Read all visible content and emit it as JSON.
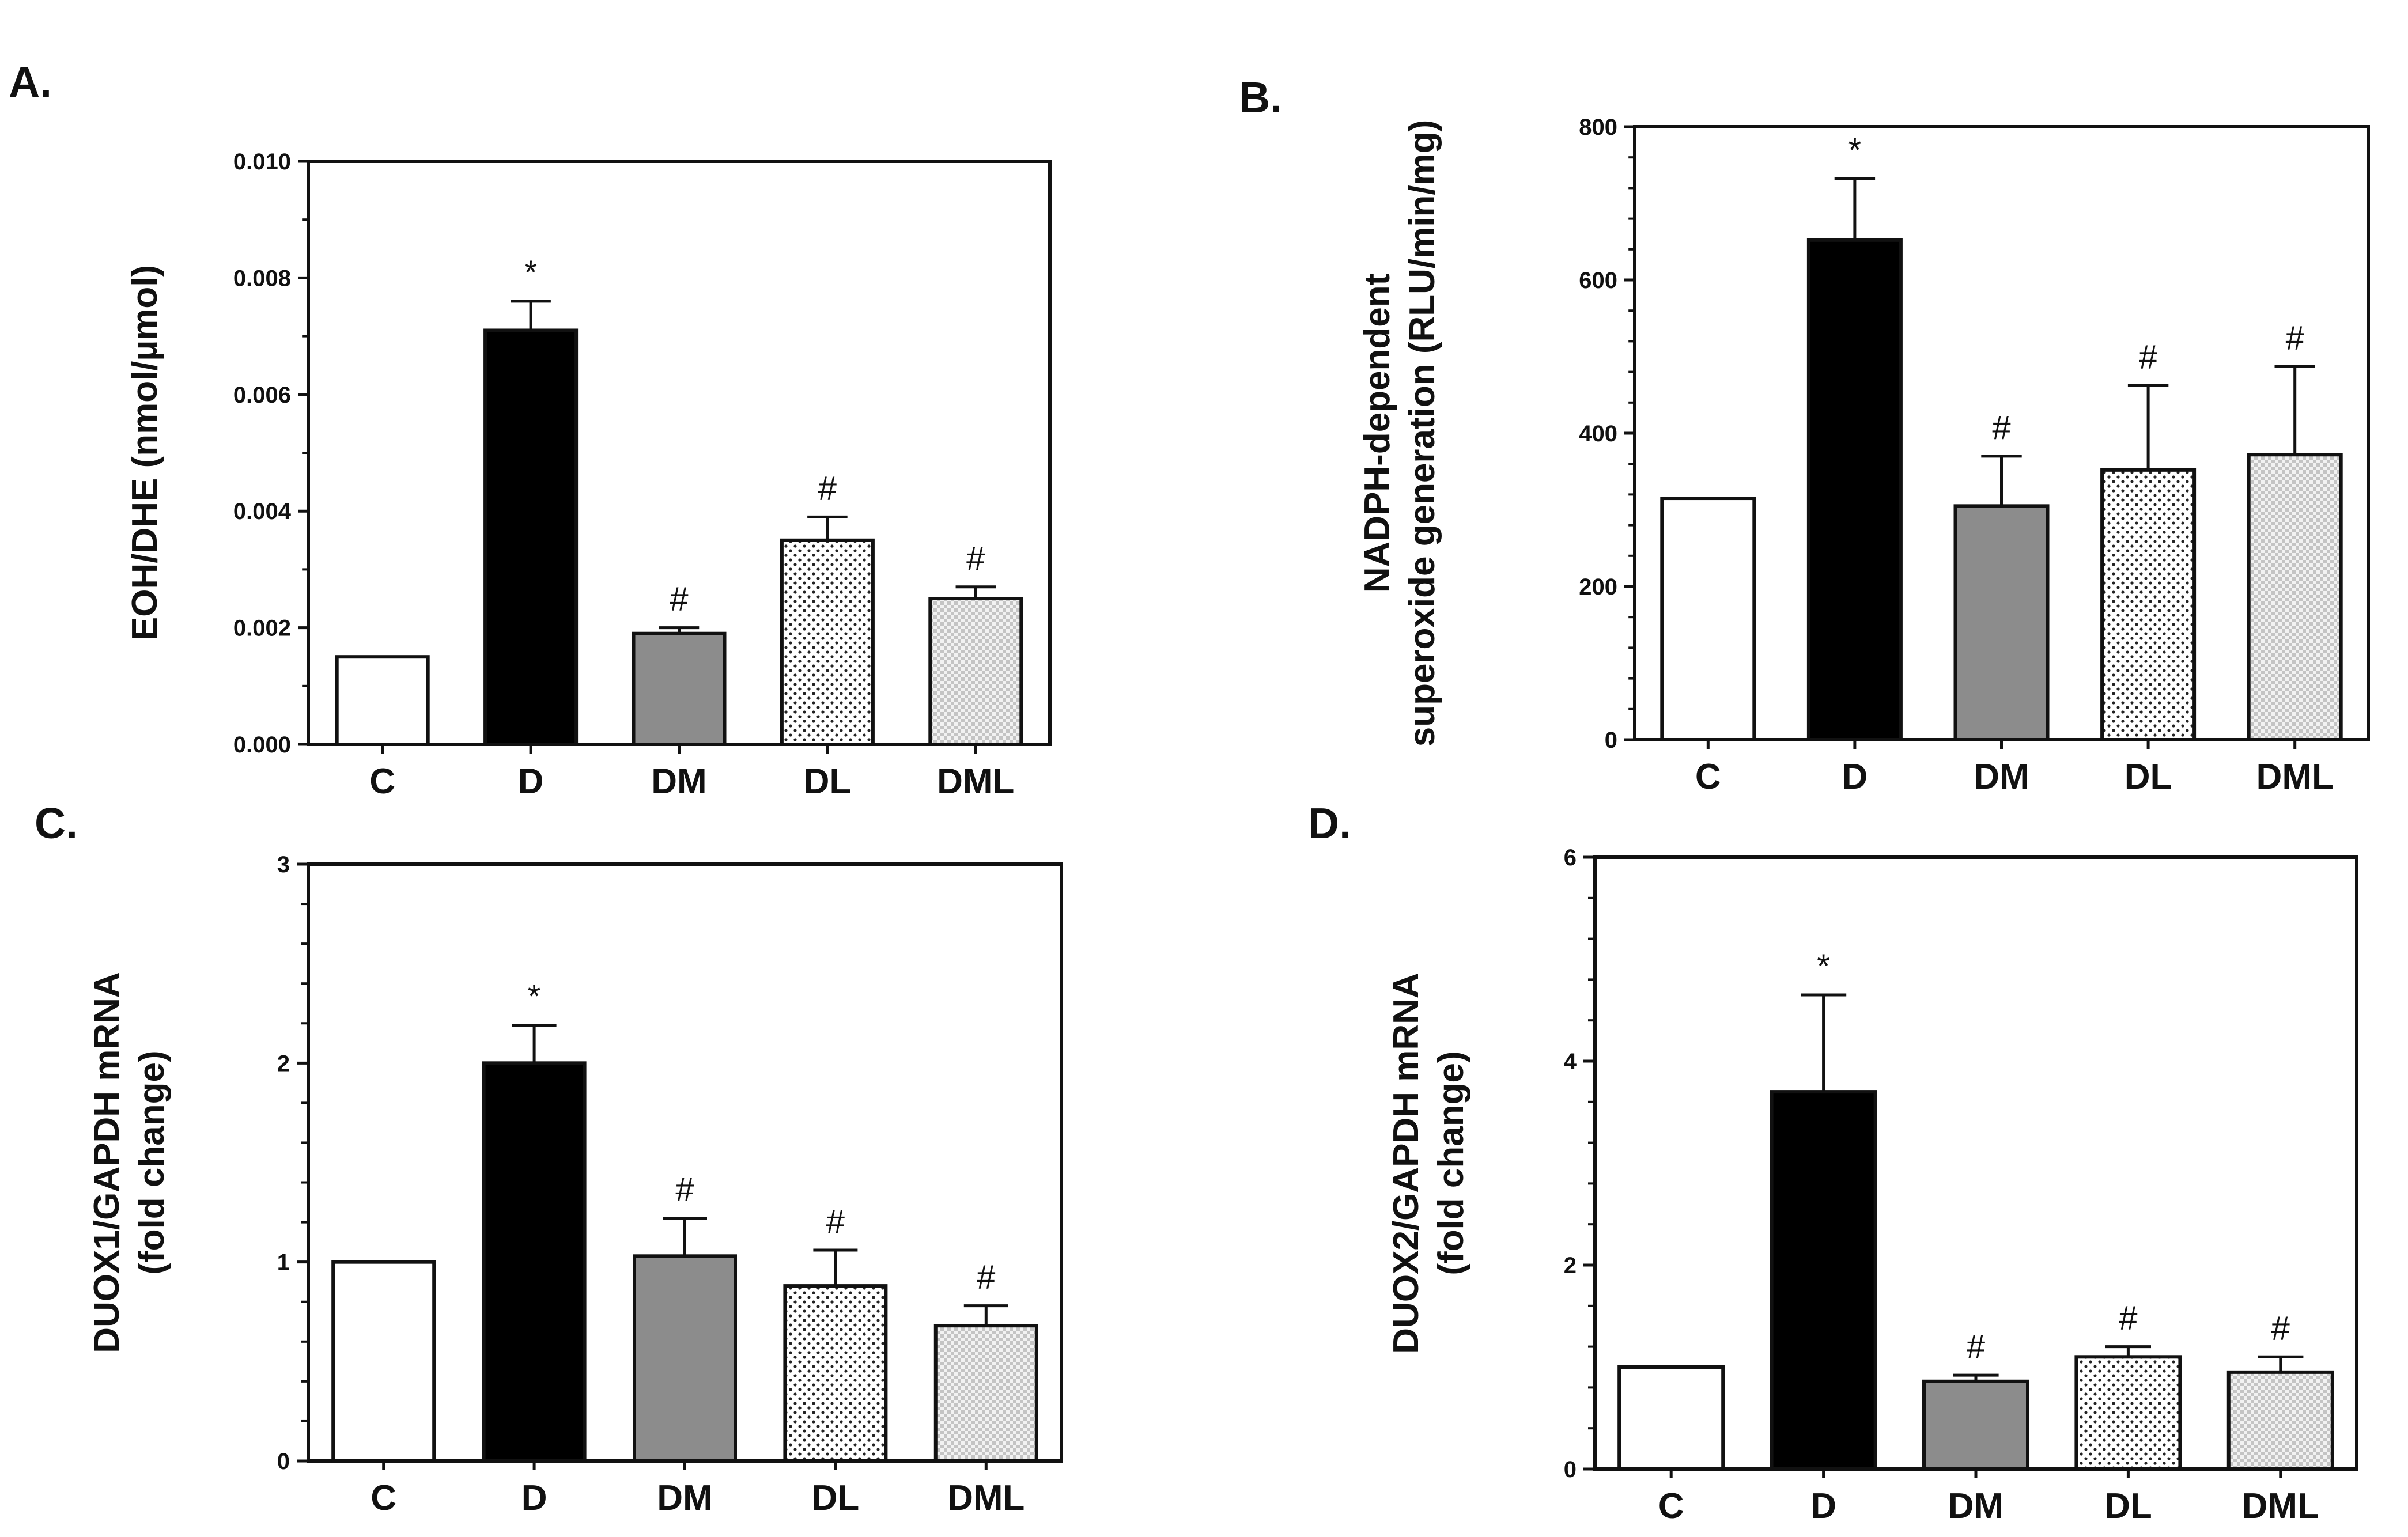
{
  "chart_data": [
    {
      "panel": "A.",
      "type": "bar",
      "categories": [
        "C",
        "D",
        "DM",
        "DL",
        "DML"
      ],
      "values": [
        0.0015,
        0.0071,
        0.0019,
        0.0035,
        0.0025
      ],
      "errors": [
        0,
        0.0005,
        0.0001,
        0.0004,
        0.0002
      ],
      "annotations": [
        "",
        "*",
        "#",
        "#",
        "#"
      ],
      "ylabel": [
        "EOH/DHE (nmol/µmol)"
      ],
      "ylim": [
        0,
        0.01
      ],
      "yticks": [
        "0.000",
        "0.002",
        "0.004",
        "0.006",
        "0.008",
        "0.010"
      ]
    },
    {
      "panel": "B.",
      "type": "bar",
      "categories": [
        "C",
        "D",
        "DM",
        "DL",
        "DML"
      ],
      "values": [
        315,
        652,
        305,
        352,
        372
      ],
      "errors": [
        0,
        80,
        65,
        110,
        115
      ],
      "annotations": [
        "",
        "*",
        "#",
        "#",
        "#"
      ],
      "ylabel": [
        "NADPH-dependent",
        "superoxide generation (RLU/min/mg)"
      ],
      "ylim": [
        0,
        800
      ],
      "yticks": [
        "0",
        "200",
        "400",
        "600",
        "800"
      ]
    },
    {
      "panel": "C.",
      "type": "bar",
      "categories": [
        "C",
        "D",
        "DM",
        "DL",
        "DML"
      ],
      "values": [
        1.0,
        2.0,
        1.03,
        0.88,
        0.68
      ],
      "errors": [
        0,
        0.19,
        0.19,
        0.18,
        0.1
      ],
      "annotations": [
        "",
        "*",
        "#",
        "#",
        "#"
      ],
      "ylabel": [
        "DUOX1/GAPDH mRNA",
        "(fold change)"
      ],
      "ylim": [
        0,
        3
      ],
      "yticks": [
        "0",
        "1",
        "2",
        "3"
      ]
    },
    {
      "panel": "D.",
      "type": "bar",
      "categories": [
        "C",
        "D",
        "DM",
        "DL",
        "DML"
      ],
      "values": [
        1.0,
        3.7,
        0.86,
        1.1,
        0.95
      ],
      "errors": [
        0,
        0.95,
        0.06,
        0.1,
        0.15
      ],
      "annotations": [
        "",
        "*",
        "#",
        "#",
        "#"
      ],
      "ylabel": [
        "DUOX2/GAPDH mRNA",
        "(fold change)"
      ],
      "ylim": [
        0,
        6
      ],
      "yticks": [
        "0",
        "2",
        "4",
        "6"
      ]
    }
  ],
  "fills": {
    "C": "#ffffff",
    "D": "#000000",
    "DM": "#8c8c8c",
    "DL": "dots",
    "DML": "checker"
  }
}
